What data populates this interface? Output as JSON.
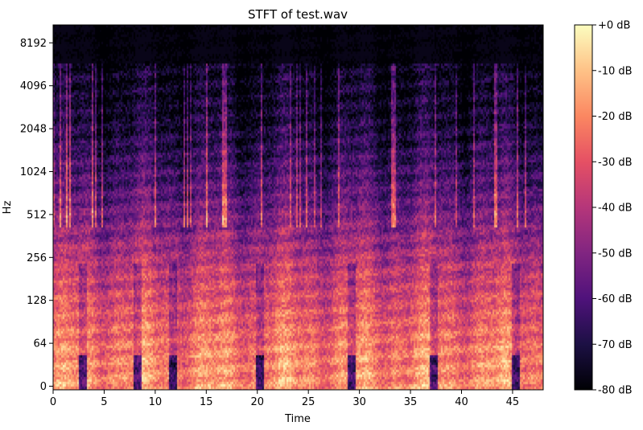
{
  "chart_data": {
    "type": "heatmap",
    "title": "STFT of test.wav",
    "xlabel": "Time",
    "ylabel": "Hz",
    "x_ticks": [
      0,
      5,
      10,
      15,
      20,
      25,
      30,
      35,
      40,
      45
    ],
    "xlim": [
      0,
      48
    ],
    "y_scale": "symlog",
    "y_ticks": [
      "0",
      "64",
      "128",
      "256",
      "512",
      "1024",
      "2048",
      "4096",
      "8192"
    ],
    "y_tick_values": [
      0,
      64,
      128,
      256,
      512,
      1024,
      2048,
      4096,
      8192
    ],
    "colormap": "magma",
    "colorbar": {
      "range": [
        -80,
        0
      ],
      "unit": "dB",
      "ticks": [
        "+0 dB",
        "-10 dB",
        "-20 dB",
        "-30 dB",
        "-40 dB",
        "-50 dB",
        "-60 dB",
        "-70 dB",
        "-80 dB"
      ],
      "tick_values": [
        0,
        -10,
        -20,
        -30,
        -40,
        -50,
        -60,
        -70,
        -80
      ]
    },
    "quiet_segments_time": [
      [
        2.5,
        3.3
      ],
      [
        7.8,
        8.6
      ],
      [
        11.2,
        12.0
      ],
      [
        19.8,
        20.6
      ],
      [
        28.8,
        29.6
      ],
      [
        36.8,
        37.6
      ],
      [
        44.8,
        45.6
      ]
    ],
    "grid": false
  }
}
